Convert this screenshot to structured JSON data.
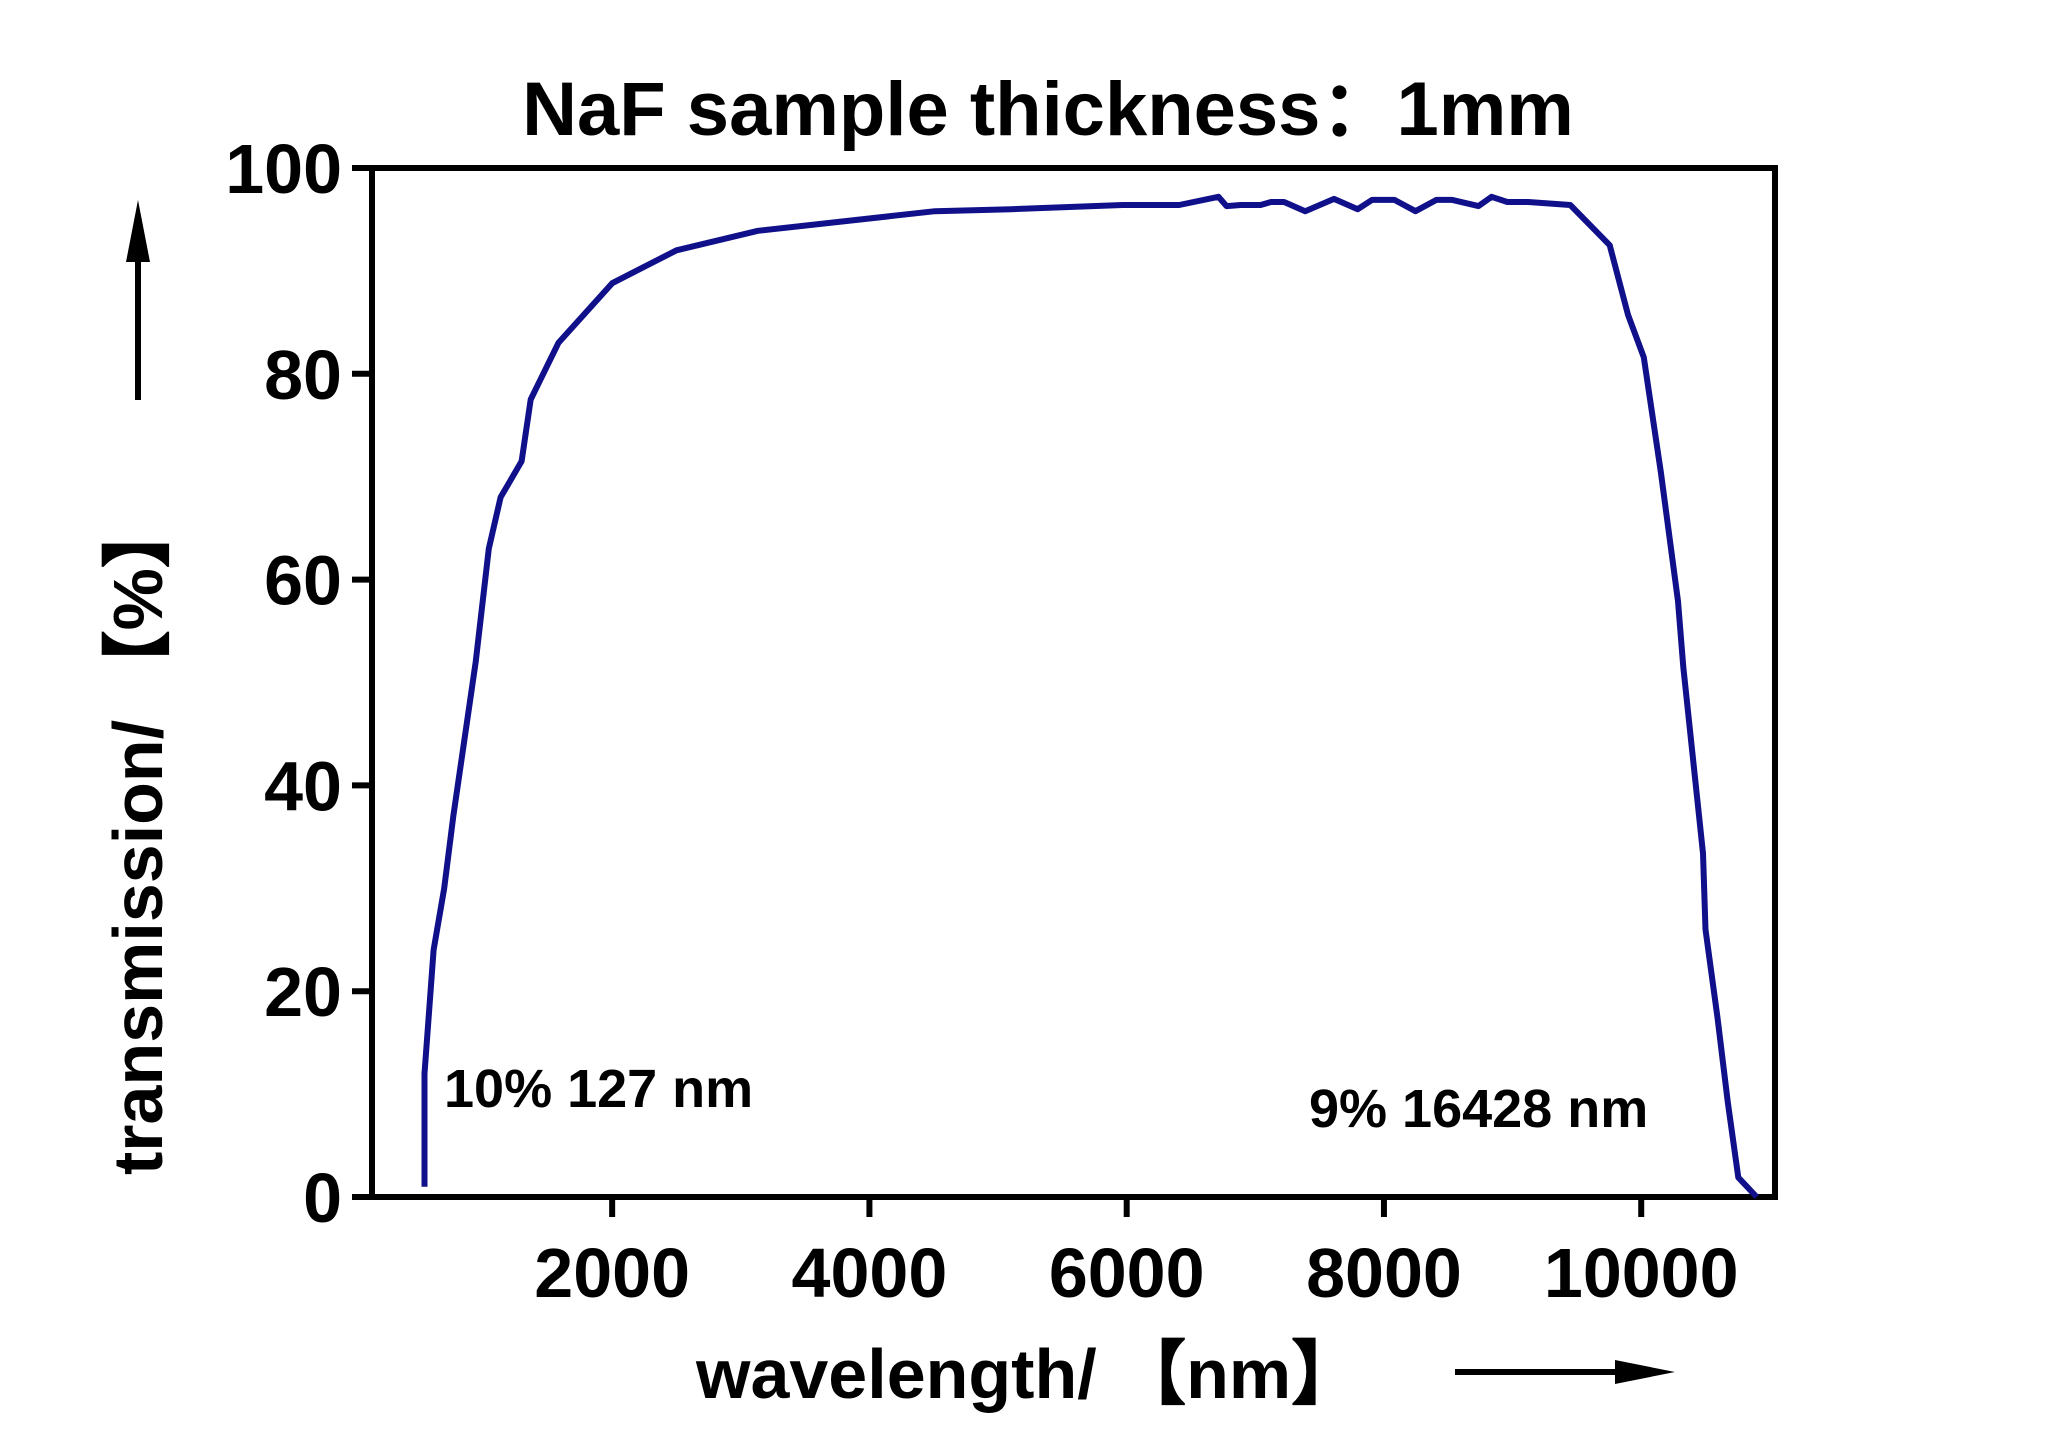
{
  "chart_data": {
    "type": "line",
    "title": "NaF sample thickness：1mm",
    "x_label": "wavelength/ 【nm】",
    "y_label": "transmission/ 【%】",
    "annotations": [
      "10% 127 nm",
      "9% 16428 nm"
    ],
    "xlim": [
      133,
      11040
    ],
    "ylim": [
      0,
      100
    ],
    "xticks": [
      2000,
      4000,
      6000,
      8000,
      10000
    ],
    "yticks": [
      0,
      20,
      40,
      60,
      80,
      100
    ],
    "grid": false,
    "series": [
      {
        "name": "NaF",
        "color": "#10108a",
        "x": [
          541,
          541,
          612,
          694,
          765,
          939,
          1041,
          1133,
          1296,
          1367,
          1582,
          2000,
          2500,
          3133,
          4510,
          5102,
          5969,
          6408,
          6714,
          6776,
          6888,
          7041,
          7122,
          7224,
          7388,
          7612,
          7796,
          7908,
          8082,
          8245,
          8408,
          8531,
          8735,
          8837,
          8959,
          9122,
          9449,
          9755,
          9898,
          10020,
          10153,
          10286,
          10327,
          10480,
          10500,
          10592,
          10673,
          10755,
          10898
        ],
        "values": [
          1,
          12,
          24,
          30,
          37,
          52,
          63,
          68,
          71.5,
          77.5,
          83,
          88.8,
          92,
          93.9,
          95.8,
          96,
          96.4,
          96.4,
          97.2,
          96.3,
          96.4,
          96.4,
          96.7,
          96.7,
          95.8,
          97,
          96,
          96.9,
          96.9,
          95.8,
          96.9,
          96.9,
          96.3,
          97.2,
          96.7,
          96.7,
          96.4,
          92.5,
          85.7,
          81.6,
          70.4,
          57.9,
          51.5,
          33.4,
          26,
          17.5,
          9.2,
          1.9,
          0
        ]
      }
    ]
  }
}
